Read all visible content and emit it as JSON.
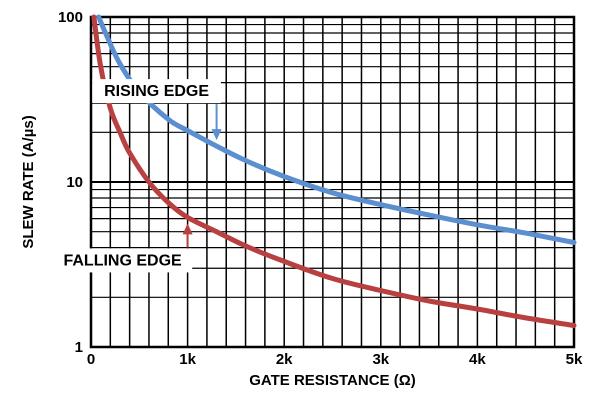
{
  "chart_data": {
    "type": "line",
    "title": "",
    "xlabel": "GATE RESISTANCE (Ω)",
    "ylabel": "SLEW RATE (A/µs)",
    "x_scale": "linear",
    "y_scale": "log",
    "xlim": [
      0,
      5000
    ],
    "ylim": [
      1,
      100
    ],
    "grid": true,
    "legend": "none",
    "x_ticks": [
      {
        "value": 0,
        "label": "0"
      },
      {
        "value": 1000,
        "label": "1k"
      },
      {
        "value": 2000,
        "label": "2k"
      },
      {
        "value": 3000,
        "label": "3k"
      },
      {
        "value": 4000,
        "label": "4k"
      },
      {
        "value": 5000,
        "label": "5k"
      }
    ],
    "y_ticks": [
      {
        "value": 1,
        "label": "1"
      },
      {
        "value": 10,
        "label": "10"
      },
      {
        "value": 100,
        "label": "100"
      }
    ],
    "series": [
      {
        "color": "#5b8fd0",
        "x": [
          80,
          150,
          300,
          500,
          800,
          1000,
          1300,
          1600,
          2000,
          2500,
          3000,
          3500,
          4000,
          4500,
          5000
        ],
        "y": [
          100,
          80,
          52,
          35,
          24,
          20.5,
          16.5,
          13.5,
          10.8,
          8.6,
          7.3,
          6.3,
          5.5,
          4.9,
          4.3
        ]
      },
      {
        "color": "#b84040",
        "x": [
          30,
          100,
          200,
          300,
          400,
          600,
          800,
          1000,
          1300,
          1600,
          2000,
          2500,
          3000,
          3500,
          4000,
          4500,
          5000
        ],
        "y": [
          100,
          50,
          28,
          20,
          15,
          10,
          7.5,
          6.1,
          5.0,
          4.1,
          3.3,
          2.6,
          2.2,
          1.9,
          1.7,
          1.5,
          1.35
        ]
      }
    ],
    "annotations": [
      {
        "text": "RISING EDGE",
        "series_index": 0,
        "x": 1300
      },
      {
        "text": "FALLING EDGE",
        "series_index": 1,
        "x": 1000
      }
    ]
  }
}
